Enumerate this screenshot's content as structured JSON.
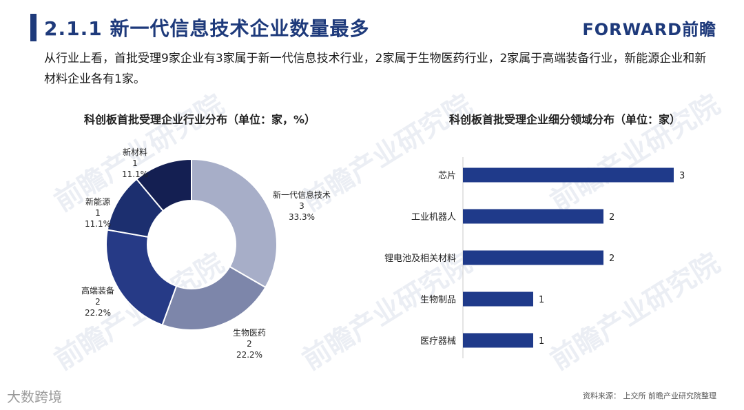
{
  "header": {
    "title": "2.1.1 新一代信息技术企业数量最多",
    "brand": "FORWARD前瞻"
  },
  "intro": "从行业上看，首批受理9家企业有3家属于新一代信息技术行业，2家属于生物医药行业，2家属于高端装备行业，新能源企业和新材料企业各有1家。",
  "watermark": "前瞻产业研究院",
  "source": "资料来源：  上交所  前瞻产业研究院整理",
  "stamp": "大数跨境",
  "colors": {
    "brand": "#1e3a7b",
    "bar": "#1f3a8a"
  },
  "chart_data": [
    {
      "type": "pie",
      "donut": true,
      "title": "科创板首批受理企业行业分布（单位：家，%）",
      "labels": [
        "新一代信息技术",
        "生物医药",
        "高端装备",
        "新能源",
        "新材料"
      ],
      "values": [
        3,
        2,
        2,
        1,
        1
      ],
      "percent_labels": [
        "33.3%",
        "22.2%",
        "22.2%",
        "11.1%",
        "11.1%"
      ],
      "colors": [
        "#a7aec8",
        "#7d86aa",
        "#263a86",
        "#1c2f6f",
        "#141f52"
      ]
    },
    {
      "type": "bar",
      "orientation": "horizontal",
      "title": "科创板首批受理企业细分领域分布（单位：家）",
      "categories": [
        "芯片",
        "工业机器人",
        "锂电池及相关材料",
        "生物制品",
        "医疗器械"
      ],
      "values": [
        3,
        2,
        2,
        1,
        1
      ],
      "xlim": [
        0,
        3
      ]
    }
  ]
}
